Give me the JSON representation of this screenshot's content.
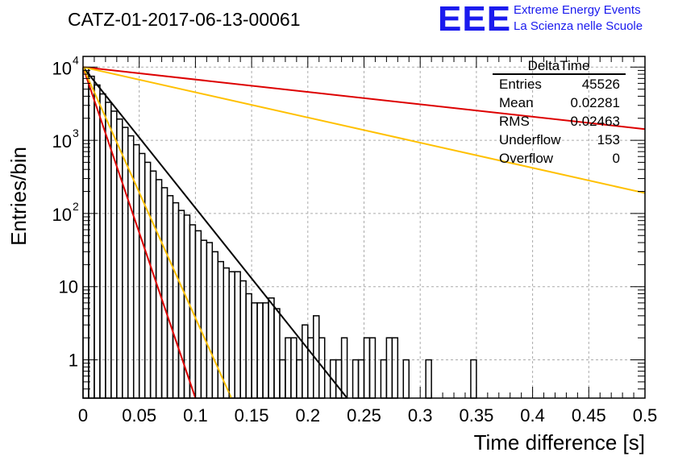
{
  "header": {
    "run_title": "CATZ-01-2017-06-13-00061",
    "logo_text": "EEE",
    "logo_line1": "Extreme Energy Events",
    "logo_line2": "La Scienza nelle Scuole"
  },
  "colors": {
    "logo": "#1a1aee",
    "fit_black": "#000000",
    "model_red": "#dd0000",
    "model_orange": "#ffc000"
  },
  "stats": {
    "title": "DeltaTime",
    "rows": [
      {
        "label": "Entries",
        "value": "45526"
      },
      {
        "label": "Mean",
        "value": "0.02281"
      },
      {
        "label": "RMS",
        "value": "0.02463"
      },
      {
        "label": "Underflow",
        "value": "153"
      },
      {
        "label": "Overflow",
        "value": "0"
      }
    ]
  },
  "chart_data": {
    "type": "histogram",
    "xlabel": "Time difference [s]",
    "ylabel": "Entries/bin",
    "xlim": [
      0,
      0.5
    ],
    "ylim": [
      0.3,
      15000
    ],
    "yscale": "log",
    "grid": true,
    "legend": "top-right",
    "x_ticks": [
      {
        "v": 0,
        "label": "0"
      },
      {
        "v": 0.05,
        "label": "0.05"
      },
      {
        "v": 0.1,
        "label": "0.1"
      },
      {
        "v": 0.15,
        "label": "0.15"
      },
      {
        "v": 0.2,
        "label": "0.2"
      },
      {
        "v": 0.25,
        "label": "0.25"
      },
      {
        "v": 0.3,
        "label": "0.3"
      },
      {
        "v": 0.35,
        "label": "0.35"
      },
      {
        "v": 0.4,
        "label": "0.4"
      },
      {
        "v": 0.45,
        "label": "0.45"
      },
      {
        "v": 0.5,
        "label": "0.5"
      }
    ],
    "y_ticks": [
      {
        "v": 1,
        "label": "1"
      },
      {
        "v": 10,
        "label": "10"
      },
      {
        "v": 100,
        "base": "10",
        "exp": "2"
      },
      {
        "v": 1000,
        "base": "10",
        "exp": "3"
      },
      {
        "v": 10000,
        "base": "10",
        "exp": "4"
      }
    ],
    "bin_width": 0.005,
    "histogram_values": [
      9800,
      7500,
      5700,
      4300,
      3300,
      2500,
      1950,
      1500,
      1150,
      870,
      660,
      500,
      380,
      290,
      225,
      175,
      140,
      110,
      95,
      70,
      58,
      43,
      40,
      30,
      22,
      18,
      16,
      16,
      12,
      8,
      6,
      6,
      6,
      7,
      5,
      1,
      2,
      2,
      1,
      3,
      2,
      4,
      2,
      0,
      1,
      1,
      2,
      0,
      1,
      1,
      2,
      2,
      0,
      1,
      2,
      2,
      0,
      1,
      0,
      0,
      0,
      1,
      0,
      0,
      0,
      0,
      0,
      0,
      0,
      1,
      0,
      0,
      0,
      0,
      0,
      0,
      0,
      0,
      0,
      0,
      0,
      0,
      0,
      0,
      0,
      0,
      0,
      0,
      0,
      0,
      0,
      0,
      0,
      0,
      0,
      0,
      0,
      0,
      0,
      0
    ],
    "curves": [
      {
        "color": "#000000",
        "points": [
          [
            0,
            10000
          ],
          [
            0.235,
            0.3
          ]
        ]
      },
      {
        "color": "#dd0000",
        "points": [
          [
            0,
            10000
          ],
          [
            0.1,
            0.3
          ]
        ]
      },
      {
        "color": "#ffc000",
        "points": [
          [
            0,
            10000
          ],
          [
            0.132,
            0.3
          ]
        ]
      },
      {
        "color": "#dd0000",
        "points": [
          [
            0,
            10000
          ],
          [
            0.5,
            1420
          ]
        ]
      },
      {
        "color": "#ffc000",
        "points": [
          [
            0,
            10000
          ],
          [
            0.5,
            190
          ]
        ]
      }
    ]
  }
}
